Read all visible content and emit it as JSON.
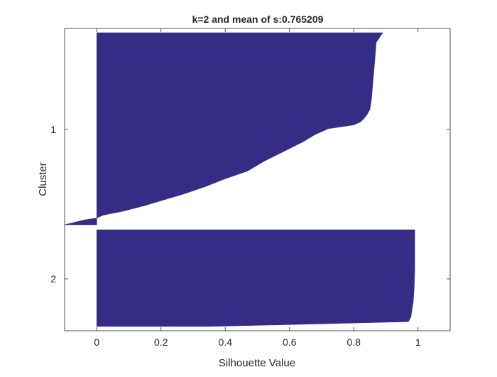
{
  "chart_data": {
    "type": "area",
    "chart_kind": "silhouette",
    "title": "k=2 and mean of s:0.765209",
    "xlabel": "Silhouette Value",
    "ylabel": "Cluster",
    "xlim": [
      -0.1,
      1.1
    ],
    "xticks": [
      0,
      0.2,
      0.4,
      0.6,
      0.8,
      1
    ],
    "xtick_labels": [
      "0",
      "0.2",
      "0.4",
      "0.6",
      "0.8",
      "1"
    ],
    "categories": [
      "1",
      "2"
    ],
    "grid": false,
    "fill_color": "#352c85",
    "clusters": [
      {
        "name": "1",
        "silhouette_profile": [
          [
            0.0,
            0.89
          ],
          [
            0.05,
            0.87
          ],
          [
            0.15,
            0.865
          ],
          [
            0.25,
            0.86
          ],
          [
            0.35,
            0.855
          ],
          [
            0.4,
            0.85
          ],
          [
            0.43,
            0.84
          ],
          [
            0.45,
            0.83
          ],
          [
            0.465,
            0.82
          ],
          [
            0.48,
            0.8
          ],
          [
            0.5,
            0.72
          ],
          [
            0.53,
            0.68
          ],
          [
            0.57,
            0.64
          ],
          [
            0.62,
            0.58
          ],
          [
            0.67,
            0.52
          ],
          [
            0.72,
            0.47
          ],
          [
            0.76,
            0.4
          ],
          [
            0.8,
            0.34
          ],
          [
            0.84,
            0.27
          ],
          [
            0.87,
            0.21
          ],
          [
            0.9,
            0.15
          ],
          [
            0.93,
            0.08
          ],
          [
            0.95,
            0.02
          ],
          [
            0.965,
            0.0
          ],
          [
            0.975,
            -0.04
          ],
          [
            1.0,
            -0.1
          ]
        ]
      },
      {
        "name": "2",
        "silhouette_profile": [
          [
            0.0,
            0.99
          ],
          [
            0.2,
            0.99
          ],
          [
            0.4,
            0.99
          ],
          [
            0.6,
            0.988
          ],
          [
            0.75,
            0.985
          ],
          [
            0.85,
            0.98
          ],
          [
            0.9,
            0.978
          ],
          [
            0.95,
            0.97
          ],
          [
            1.0,
            0.35
          ]
        ]
      }
    ]
  }
}
